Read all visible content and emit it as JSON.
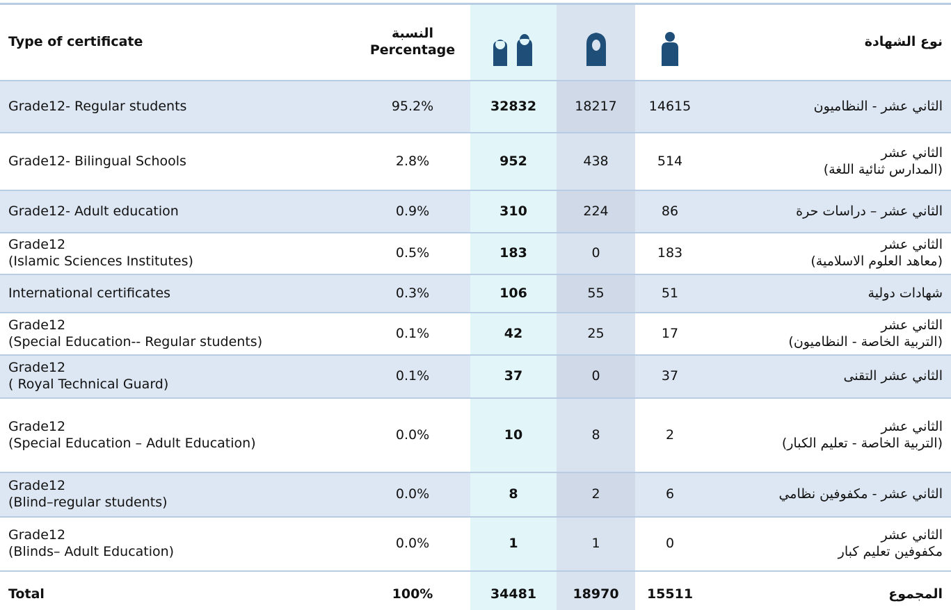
{
  "header": {
    "english": "Type of certificate",
    "percentage": "النسبة\nPercentage",
    "arabic": "نوع الشهادة"
  },
  "table": {
    "rows": [
      [
        "Grade12- Regular students",
        "95.2%",
        "32832",
        "18217",
        "14615",
        "الثاني عشر - النظاميون"
      ],
      [
        "Grade12- Bilingual Schools",
        "2.8%",
        "952",
        "438",
        "514",
        "الثاني عشر\n(المدارس ثنائية اللغة)"
      ],
      [
        "Grade12- Adult education",
        "0.9%",
        "310",
        "224",
        "86",
        "الثاني عشر – دراسات حرة"
      ],
      [
        "Grade12\n(Islamic Sciences Institutes)",
        "0.5%",
        "183",
        "0",
        "183",
        "الثاني عشر\n(معاهد العلوم الاسلامية)"
      ],
      [
        "International certificates",
        "0.3%",
        "106",
        "55",
        "51",
        "شهادات دولية"
      ],
      [
        "Grade12\n(Special Education-- Regular students)",
        "0.1%",
        "42",
        "25",
        "17",
        "الثاني عشر\n(التربية الخاصة - النظاميون)"
      ],
      [
        "Grade12\n ( Royal Technical Guard)",
        "0.1%",
        "37",
        "0",
        "37",
        "الثاني عشر التقنى"
      ],
      [
        "Grade12\n(Special Education – Adult Education)",
        "0.0%",
        "10",
        "8",
        "2",
        "الثاني عشر\n(التربية الخاصة - تعليم الكبار)"
      ],
      [
        "Grade12\n(Blind–regular students)",
        "0.0%",
        "8",
        "2",
        "6",
        "الثاني عشر - مكفوفين نظامي"
      ],
      [
        "Grade12\n(Blinds– Adult Education)",
        "0.0%",
        "1",
        "1",
        "0",
        "الثاني عشر\nمكفوفين تعليم كبار"
      ]
    ],
    "total": [
      "Total",
      "100%",
      "34481",
      "18970",
      "15511",
      "المجموع"
    ]
  }
}
